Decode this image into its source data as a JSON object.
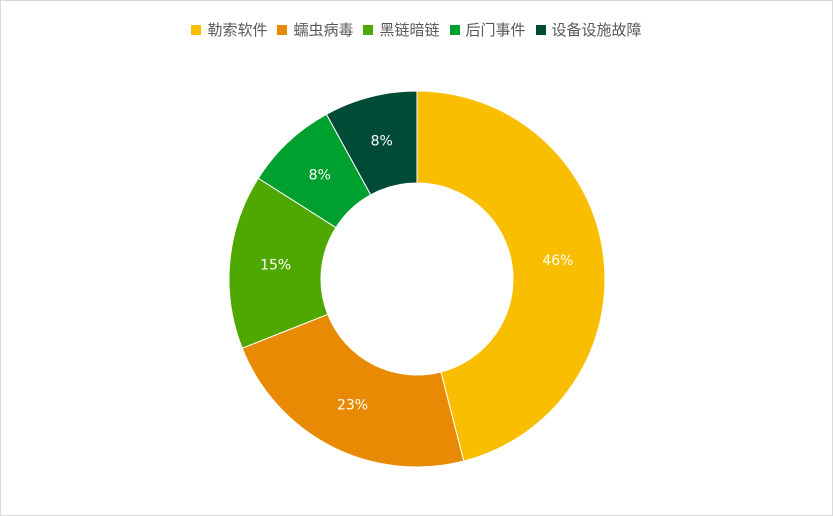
{
  "chart_data": {
    "type": "pie",
    "donut": true,
    "categories": [
      "勒索软件",
      "蠕虫病毒",
      "黑链暗链",
      "后门事件",
      "设备设施故障"
    ],
    "values": [
      46,
      23,
      15,
      8,
      8
    ],
    "data_labels": [
      "46%",
      "23%",
      "15%",
      "8%",
      "8%"
    ],
    "colors": [
      "#F9BE00",
      "#E98A05",
      "#4EA800",
      "#00A02E",
      "#004B36"
    ],
    "legend_position": "top",
    "start_angle": "12 o'clock",
    "direction": "clockwise"
  }
}
